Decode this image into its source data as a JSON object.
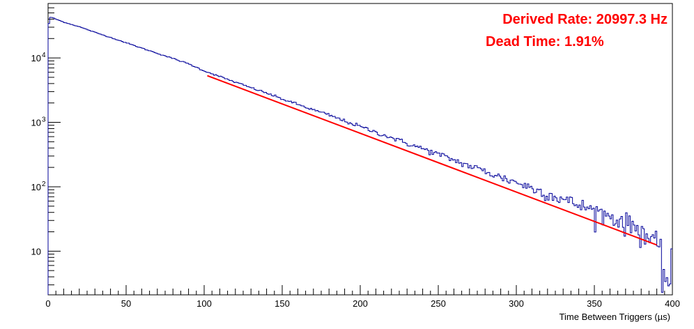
{
  "chart_data": {
    "type": "line",
    "title": "",
    "xlabel": "Time Between Triggers (µs)",
    "ylabel": "",
    "xlim": [
      0,
      400
    ],
    "ylim": [
      2.1,
      70000
    ],
    "y_scale": "log",
    "grid": false,
    "legend": "none",
    "x_ticks": [
      0,
      50,
      100,
      150,
      200,
      250,
      300,
      350,
      400
    ],
    "y_tick_labels": [
      {
        "value": 10,
        "base": "10",
        "exp": ""
      },
      {
        "value": 100,
        "base": "10",
        "exp": "2"
      },
      {
        "value": 1000,
        "base": "10",
        "exp": "3"
      },
      {
        "value": 10000,
        "base": "10",
        "exp": "4"
      }
    ],
    "annotations": [
      {
        "text": "Derived Rate: 20997.3 Hz",
        "color": "#ff0000",
        "placement": "top-right"
      },
      {
        "text": "Dead Time: 1.91%",
        "color": "#ff0000",
        "placement": "top-right"
      }
    ],
    "series": [
      {
        "style": "histogram-step",
        "color": "#000099",
        "x": [
          0,
          1,
          2,
          3,
          5,
          10,
          20,
          30,
          40,
          50,
          60,
          70,
          80,
          90,
          100,
          110,
          120,
          130,
          140,
          150,
          160,
          170,
          180,
          190,
          200,
          210,
          220,
          230,
          240,
          250,
          260,
          270,
          280,
          290,
          300,
          310,
          320,
          330,
          340,
          350,
          360,
          370,
          380,
          385,
          390,
          395,
          398,
          400
        ],
        "y": [
          28000,
          42000,
          43000,
          42000,
          40000,
          36000,
          30500,
          25000,
          20800,
          17200,
          14200,
          11800,
          9800,
          8100,
          6300,
          5150,
          4200,
          3450,
          2850,
          2300,
          1900,
          1560,
          1300,
          1050,
          860,
          700,
          580,
          470,
          390,
          320,
          260,
          210,
          175,
          140,
          118,
          95,
          78,
          64,
          52,
          43,
          35,
          28,
          22,
          16,
          12,
          5,
          3,
          13
        ]
      },
      {
        "style": "fit-line",
        "color": "#ff0000",
        "x": [
          102,
          390
        ],
        "y": [
          5300,
          12.5
        ]
      }
    ]
  }
}
